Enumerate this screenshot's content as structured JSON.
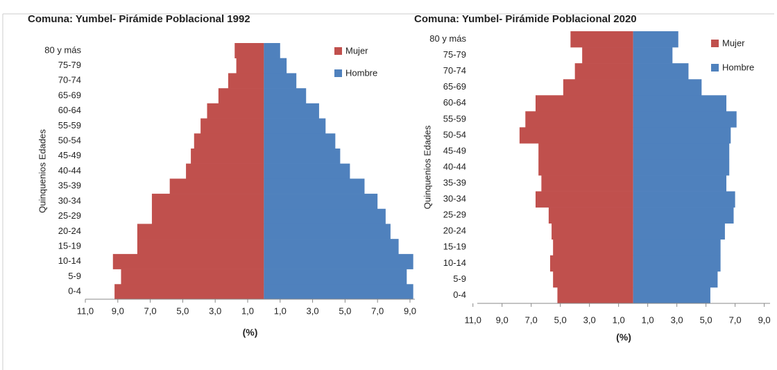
{
  "chart_data": [
    {
      "type": "bar",
      "orientation": "horizontal",
      "stacked": true,
      "title": "Comuna: Yumbel-  Pirámide Poblacional 1992",
      "x_label": "(%)",
      "y_label": "Quinquenios Edades",
      "categories": [
        "0-4",
        "5-9",
        "10-14",
        "15-19",
        "20-24",
        "25-29",
        "30-34",
        "35-39",
        "40-44",
        "45-49",
        "50-54",
        "55-59",
        "60-64",
        "65-69",
        "70-74",
        "75-79",
        "80 y más"
      ],
      "series": [
        {
          "name": "Mujer",
          "color": "#c0504d",
          "values": [
            -9.2,
            -8.8,
            -9.3,
            -7.8,
            -7.8,
            -6.9,
            -6.9,
            -5.8,
            -4.8,
            -4.5,
            -4.3,
            -3.9,
            -3.5,
            -2.8,
            -2.2,
            -1.7,
            -1.8
          ]
        },
        {
          "name": "Hombre",
          "color": "#4f81bd",
          "values": [
            9.2,
            8.8,
            9.2,
            8.3,
            7.8,
            7.5,
            7.0,
            6.2,
            5.3,
            4.7,
            4.4,
            3.8,
            3.4,
            2.6,
            2.0,
            1.4,
            1.0
          ]
        }
      ],
      "xlim": [
        -11,
        9.3
      ],
      "xticks": [
        {
          "value": -11,
          "label": "11,0"
        },
        {
          "value": -9,
          "label": "9,0"
        },
        {
          "value": -7,
          "label": "7,0"
        },
        {
          "value": -5,
          "label": "5,0"
        },
        {
          "value": -3,
          "label": "3,0"
        },
        {
          "value": -1,
          "label": "1,0"
        },
        {
          "value": 1,
          "label": "1,0"
        },
        {
          "value": 3,
          "label": "3,0"
        },
        {
          "value": 5,
          "label": "5,0"
        },
        {
          "value": 7,
          "label": "7,0"
        },
        {
          "value": 9,
          "label": "9,0"
        }
      ],
      "legend": "upper right"
    },
    {
      "type": "bar",
      "orientation": "horizontal",
      "stacked": true,
      "title": "Comuna: Yumbel-  Pirámide Poblacional 2020",
      "x_label": "(%)",
      "y_label": "Quinquenios Edades",
      "categories": [
        "0-4",
        "5-9",
        "10-14",
        "15-19",
        "20-24",
        "25-29",
        "30-34",
        "35-39",
        "40-44",
        "45-49",
        "50-54",
        "55-59",
        "60-64",
        "65-69",
        "70-74",
        "75-79",
        "80 y más"
      ],
      "series": [
        {
          "name": "Mujer",
          "color": "#c0504d",
          "values": [
            -5.2,
            -5.5,
            -5.7,
            -5.5,
            -5.6,
            -5.8,
            -6.7,
            -6.3,
            -6.5,
            -6.5,
            -7.8,
            -7.4,
            -6.7,
            -4.8,
            -4.0,
            -3.5,
            -4.3
          ]
        },
        {
          "name": "Hombre",
          "color": "#4f81bd",
          "values": [
            5.3,
            5.8,
            6.0,
            6.0,
            6.3,
            6.9,
            7.0,
            6.4,
            6.6,
            6.6,
            6.7,
            7.1,
            6.4,
            4.7,
            3.8,
            2.7,
            3.1
          ]
        }
      ],
      "xlim": [
        -10.7,
        9.4
      ],
      "xticks": [
        {
          "value": -11,
          "label": "11,0"
        },
        {
          "value": -9,
          "label": "9,0"
        },
        {
          "value": -7,
          "label": "7,0"
        },
        {
          "value": -5,
          "label": "5,0"
        },
        {
          "value": -3,
          "label": "3,0"
        },
        {
          "value": -1,
          "label": "1,0"
        },
        {
          "value": 1,
          "label": "1,0"
        },
        {
          "value": 3,
          "label": "3,0"
        },
        {
          "value": 5,
          "label": "5,0"
        },
        {
          "value": 7,
          "label": "7,0"
        },
        {
          "value": 9,
          "label": "9,0"
        }
      ],
      "legend": "upper right"
    }
  ]
}
